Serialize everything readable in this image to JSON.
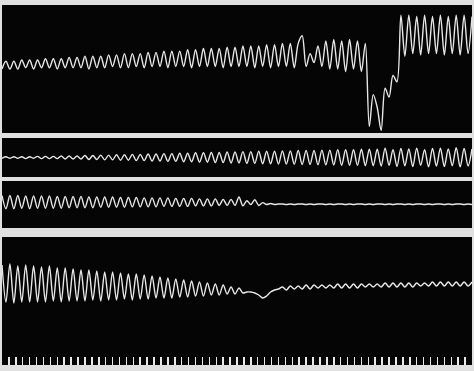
{
  "chart_data": [
    {
      "type": "line",
      "color": "#e8e8e8",
      "grid": false,
      "tick_labels": false,
      "xlim": [
        0,
        119
      ],
      "ylim": [
        0,
        100
      ],
      "values": [
        50,
        56,
        50,
        56,
        50,
        57,
        51,
        57,
        50,
        57,
        51,
        58,
        51,
        58,
        50,
        58,
        51,
        59,
        51,
        59,
        51,
        60,
        50,
        60,
        51,
        60,
        51,
        61,
        52,
        61,
        51,
        62,
        51,
        62,
        52,
        62,
        51,
        63,
        52,
        63,
        52,
        64,
        51,
        64,
        52,
        64,
        52,
        65,
        51,
        65,
        52,
        66,
        52,
        66,
        52,
        66,
        51,
        67,
        52,
        67,
        52,
        68,
        52,
        68,
        51,
        68,
        52,
        69,
        51,
        69,
        52,
        70,
        52,
        70,
        51,
        70,
        76,
        52,
        62,
        55,
        68,
        52,
        72,
        50,
        73,
        50,
        72,
        48,
        73,
        50,
        72,
        48,
        70,
        5,
        30,
        20,
        2,
        35,
        28,
        45,
        40,
        92,
        60,
        92,
        62,
        91,
        61,
        92,
        62,
        91,
        62,
        92,
        61,
        91,
        62,
        92,
        61,
        92,
        62,
        91
      ]
    },
    {
      "type": "line",
      "color": "#e8e8e8",
      "grid": false,
      "tick_labels": false,
      "xlim": [
        0,
        119
      ],
      "ylim": [
        0,
        100
      ],
      "values": [
        48,
        52,
        48,
        52,
        48,
        52,
        47,
        52,
        48,
        53,
        47,
        53,
        47,
        53,
        47,
        54,
        46,
        54,
        46,
        54,
        46,
        55,
        45,
        55,
        45,
        56,
        44,
        56,
        44,
        57,
        43,
        57,
        43,
        58,
        42,
        58,
        42,
        59,
        41,
        59,
        41,
        60,
        40,
        60,
        40,
        61,
        39,
        61,
        39,
        62,
        38,
        62,
        38,
        63,
        37,
        63,
        37,
        64,
        36,
        64,
        36,
        65,
        35,
        65,
        35,
        66,
        34,
        66,
        34,
        66,
        33,
        67,
        33,
        67,
        33,
        68,
        32,
        68,
        32,
        68,
        31,
        69,
        31,
        69,
        31,
        70,
        30,
        70,
        30,
        70,
        30,
        71,
        29,
        71,
        29,
        71,
        28,
        74,
        30,
        70,
        27,
        73,
        29,
        72,
        27,
        74,
        30,
        70,
        26,
        73,
        28,
        74,
        27,
        72,
        29,
        75,
        26,
        73,
        28,
        72
      ]
    },
    {
      "type": "line",
      "color": "#e8e8e8",
      "grid": false,
      "tick_labels": false,
      "xlim": [
        0,
        119
      ],
      "ylim": [
        0,
        100
      ],
      "values": [
        69,
        41,
        69,
        41,
        69,
        42,
        68,
        41,
        68,
        42,
        68,
        42,
        68,
        42,
        67,
        42,
        67,
        43,
        67,
        43,
        67,
        43,
        66,
        43,
        66,
        44,
        66,
        44,
        66,
        44,
        65,
        44,
        65,
        45,
        65,
        45,
        64,
        45,
        64,
        45,
        64,
        46,
        64,
        46,
        63,
        46,
        63,
        46,
        63,
        47,
        62,
        47,
        62,
        47,
        62,
        48,
        61,
        48,
        61,
        48,
        66,
        47,
        58,
        50,
        60,
        48,
        54,
        50,
        52,
        50,
        51,
        51,
        50,
        51,
        50,
        51,
        51,
        50,
        51,
        50,
        51,
        51,
        50,
        51,
        50,
        51,
        51,
        50,
        51,
        50,
        51,
        51,
        50,
        51,
        50,
        51,
        51,
        50,
        51,
        50,
        51,
        51,
        50,
        51,
        50,
        51,
        51,
        50,
        51,
        50,
        51,
        51,
        50,
        51,
        50,
        51,
        51,
        50,
        51,
        50
      ]
    },
    {
      "type": "line",
      "color": "#e8e8e8",
      "grid": false,
      "tick_labels": false,
      "xlim": [
        0,
        119
      ],
      "ylim": [
        -25,
        103
      ],
      "xticks": [
        0,
        1.75,
        3.5,
        5.25,
        7,
        8.75,
        10.5,
        12.25,
        14,
        15.75,
        17.5,
        19.25,
        21,
        22.75,
        24.5,
        26.25,
        28,
        29.75,
        31.5,
        33.25,
        35,
        36.75,
        38.5,
        40.25,
        42,
        43.75,
        45.5,
        47.25,
        49,
        50.75,
        52.5,
        54.25,
        56,
        57.75,
        59.5,
        61.25,
        63,
        64.75,
        66.5,
        68.25,
        70,
        71.75,
        73.5,
        75.25,
        77,
        78.75,
        80.5,
        82.25,
        84,
        85.75,
        87.5,
        89.25,
        91,
        92.75,
        94.5,
        96.25,
        98,
        99.75,
        101.5,
        103.25,
        105,
        106.75,
        108.5,
        110.25,
        112,
        113.75,
        115.5,
        117.25,
        119
      ],
      "values": [
        75,
        38,
        76,
        37,
        74,
        38,
        75,
        38,
        74,
        38,
        73,
        38,
        74,
        39,
        72,
        38,
        72,
        39,
        71,
        39,
        70,
        39,
        70,
        40,
        69,
        39,
        68,
        40,
        68,
        40,
        67,
        41,
        66,
        40,
        66,
        41,
        65,
        41,
        64,
        42,
        63,
        42,
        62,
        42,
        61,
        43,
        60,
        43,
        59,
        44,
        58,
        44,
        57,
        45,
        56,
        45,
        55,
        46,
        53,
        46,
        52,
        47,
        48,
        48,
        47,
        45,
        42,
        44,
        48,
        50,
        51,
        53,
        50,
        54,
        51,
        54,
        51,
        55,
        51,
        55,
        52,
        55,
        52,
        55,
        52,
        56,
        52,
        56,
        52,
        56,
        52,
        56,
        53,
        56,
        53,
        56,
        53,
        57,
        53,
        57,
        53,
        57,
        53,
        57,
        53,
        57,
        54,
        57,
        54,
        58,
        54,
        58,
        54,
        58,
        54,
        58,
        54,
        58,
        54,
        58
      ]
    }
  ]
}
